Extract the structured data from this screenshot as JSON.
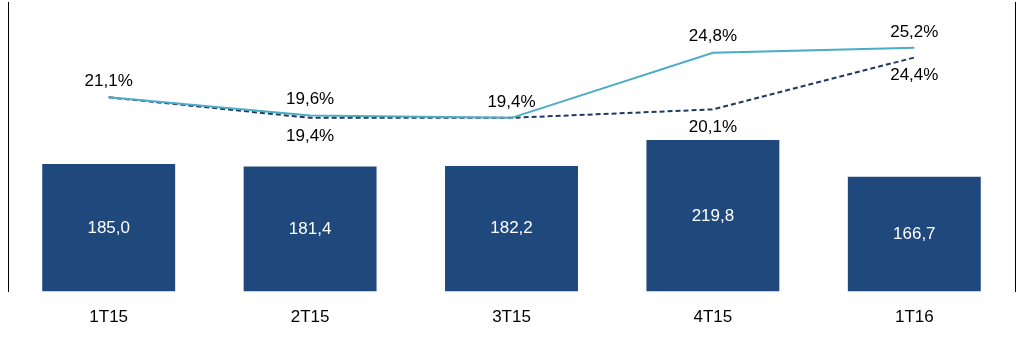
{
  "chart_data": {
    "type": "bar",
    "categories": [
      "1T15",
      "2T15",
      "3T15",
      "4T15",
      "1T16"
    ],
    "series": [
      {
        "type": "bar",
        "color": "#1f497d",
        "values": [
          185.0,
          181.4,
          182.2,
          219.8,
          166.7
        ],
        "value_labels": [
          "185,0",
          "181,4",
          "182,2",
          "219,8",
          "166,7"
        ]
      },
      {
        "type": "line",
        "axis": "y2",
        "color": "#4bacc6",
        "line_style": "solid",
        "marker": "none",
        "values": [
          21.1,
          19.6,
          19.4,
          24.8,
          25.2
        ],
        "value_labels": [
          "21,1%",
          "19,6%",
          "19,4%",
          "24,8%",
          "25,2%"
        ]
      },
      {
        "type": "line",
        "axis": "y2",
        "color": "#1f3864",
        "line_style": "dashed",
        "marker": "none",
        "values": [
          21.1,
          19.4,
          19.4,
          20.1,
          24.4
        ],
        "value_labels": [
          null,
          "19,4%",
          null,
          "20,1%",
          "24,4%"
        ]
      }
    ],
    "ylim": [
      0,
      420
    ],
    "y2lim": [
      5,
      29
    ],
    "tick_labels": "x",
    "data_labels": true,
    "grid": false
  }
}
